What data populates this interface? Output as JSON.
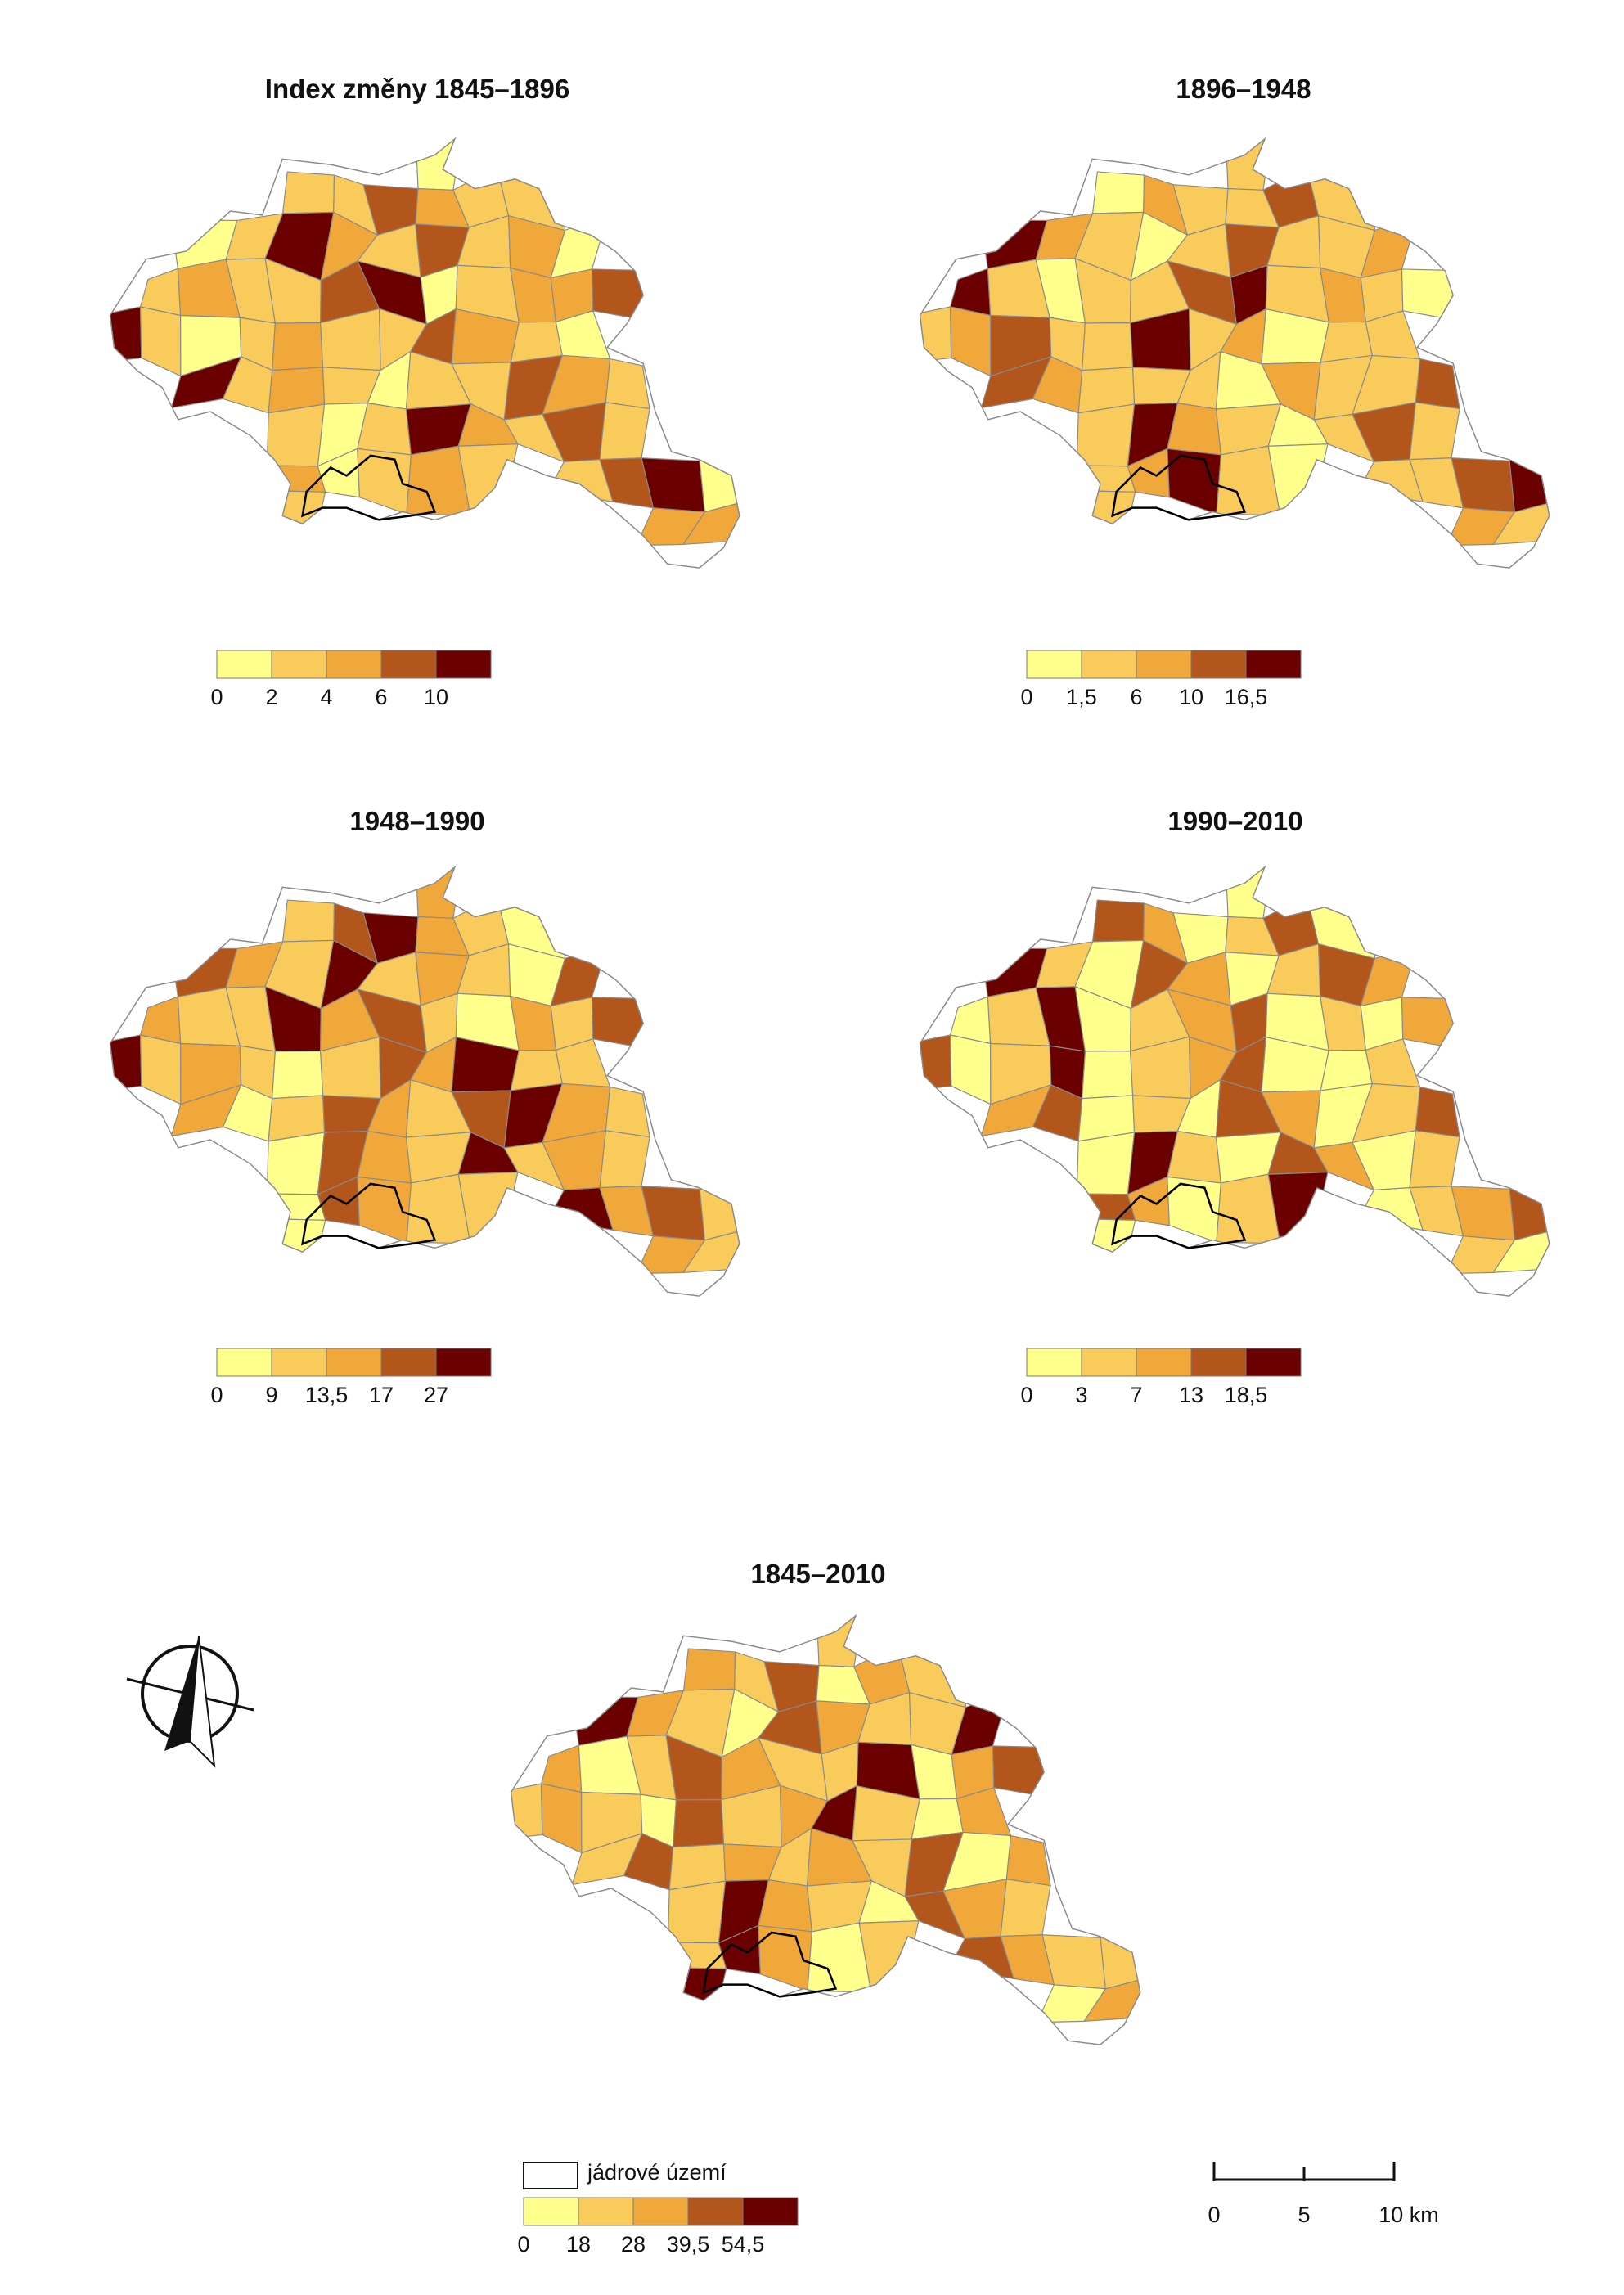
{
  "palette": [
    "#ffff8c",
    "#f9cb5b",
    "#f0a83a",
    "#b3561b",
    "#6b0000"
  ],
  "boundary_color": "#8a8a8a",
  "maps": [
    {
      "id": "map-1845-1896",
      "title": "Index změny 1845–1896",
      "legend_breaks": [
        "0",
        "2",
        "4",
        "6",
        "10"
      ],
      "class_sequence": [
        0,
        1,
        1,
        3,
        2,
        1,
        1,
        0,
        1,
        4,
        2,
        1,
        3,
        1,
        2,
        0,
        1,
        2,
        1,
        1,
        3,
        4,
        0,
        1,
        2,
        2,
        3,
        4,
        1,
        0,
        1,
        2,
        1,
        1,
        3,
        2,
        1,
        0,
        4,
        1,
        2,
        1
      ]
    },
    {
      "id": "map-1896-1948",
      "title": "1896–1948",
      "legend_breaks": [
        "0",
        "1,5",
        "6",
        "10",
        "16,5"
      ],
      "class_sequence": [
        1,
        0,
        2,
        1,
        1,
        3,
        1,
        4,
        2,
        1,
        0,
        1,
        3,
        1,
        1,
        2,
        4,
        1,
        0,
        1,
        1,
        3,
        4,
        1,
        2,
        1,
        0,
        1,
        2,
        3,
        1,
        1,
        4,
        1,
        2,
        0,
        1,
        1,
        3,
        2,
        1,
        1
      ]
    },
    {
      "id": "map-1948-1990",
      "title": "1948–1990",
      "legend_breaks": [
        "0",
        "9",
        "13,5",
        "17",
        "27"
      ],
      "class_sequence": [
        2,
        1,
        3,
        4,
        2,
        1,
        0,
        3,
        2,
        1,
        4,
        1,
        2,
        1,
        0,
        3,
        2,
        1,
        1,
        4,
        2,
        3,
        1,
        0,
        2,
        1,
        3,
        4,
        1,
        2,
        1,
        0,
        1,
        3,
        2,
        4,
        1,
        1,
        2,
        0,
        1,
        3
      ]
    },
    {
      "id": "map-1990-2010",
      "title": "1990–2010",
      "legend_breaks": [
        "0",
        "3",
        "7",
        "13",
        "18,5"
      ],
      "class_sequence": [
        0,
        3,
        2,
        0,
        1,
        3,
        0,
        4,
        1,
        0,
        3,
        2,
        0,
        1,
        3,
        2,
        0,
        1,
        4,
        0,
        1,
        2,
        3,
        0,
        1,
        0,
        2,
        3,
        0,
        1,
        4,
        0,
        1,
        2,
        3,
        0,
        0,
        1,
        2,
        3,
        0,
        1
      ]
    },
    {
      "id": "map-1845-2010",
      "title": "1845–2010",
      "legend_breaks": [
        "0",
        "18",
        "28",
        "39,5",
        "54,5"
      ],
      "class_sequence": [
        1,
        2,
        1,
        3,
        0,
        2,
        1,
        4,
        2,
        1,
        0,
        3,
        2,
        1,
        1,
        4,
        2,
        0,
        1,
        3,
        2,
        1,
        1,
        4,
        0,
        2,
        3,
        1,
        2,
        1,
        0,
        3,
        1,
        2,
        4,
        1,
        0,
        2,
        1,
        3,
        1,
        2
      ]
    }
  ],
  "core_area_label": "jádrové území",
  "scale_bar": {
    "labels": [
      "0",
      "5",
      "10 km"
    ]
  },
  "north_arrow": "north-arrow-icon"
}
